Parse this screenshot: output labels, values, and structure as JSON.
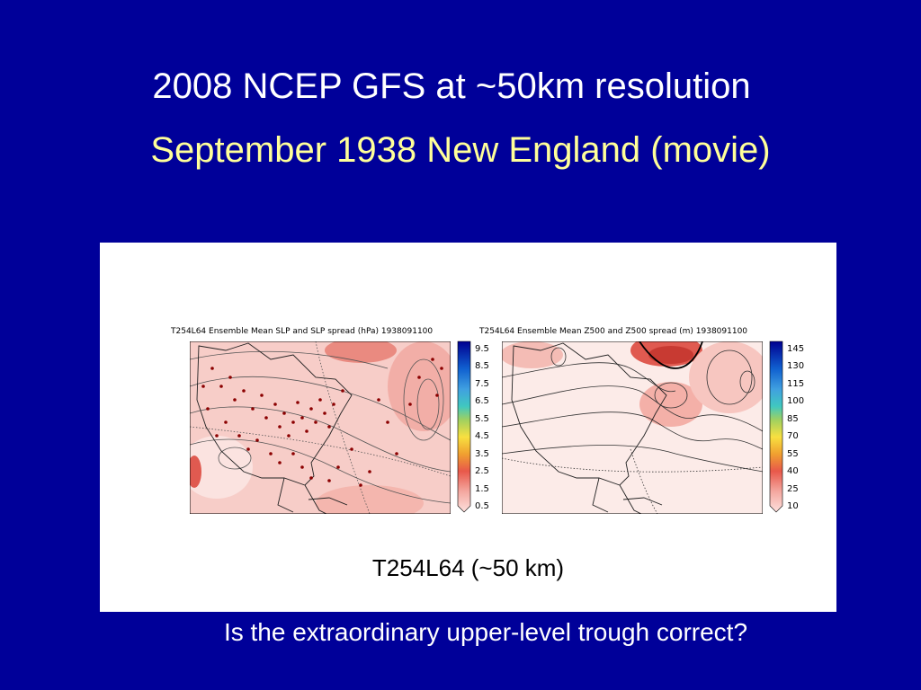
{
  "slide": {
    "title": "2008 NCEP GFS at ~50km resolution",
    "subtitle": "September 1938 New England (movie)",
    "caption": "T254L64 (~50 km)",
    "question": "Is the extraordinary upper-level trough correct?"
  },
  "panels": [
    {
      "title": "T254L64 Ensemble Mean SLP and SLP spread (hPa) 1938091100",
      "colorbar": [
        "9.5",
        "8.5",
        "7.5",
        "6.5",
        "5.5",
        "4.5",
        "3.5",
        "2.5",
        "1.5",
        "0.5"
      ]
    },
    {
      "title": "T254L64 Ensemble Mean Z500 and Z500 spread (m) 1938091100",
      "colorbar": [
        "145",
        "130",
        "115",
        "100",
        "85",
        "70",
        "55",
        "40",
        "25",
        "10"
      ]
    }
  ],
  "colors": {
    "background": "#000099",
    "title": "#ffffff",
    "subtitle": "#ffff99",
    "station_dots": "#8b0000"
  }
}
